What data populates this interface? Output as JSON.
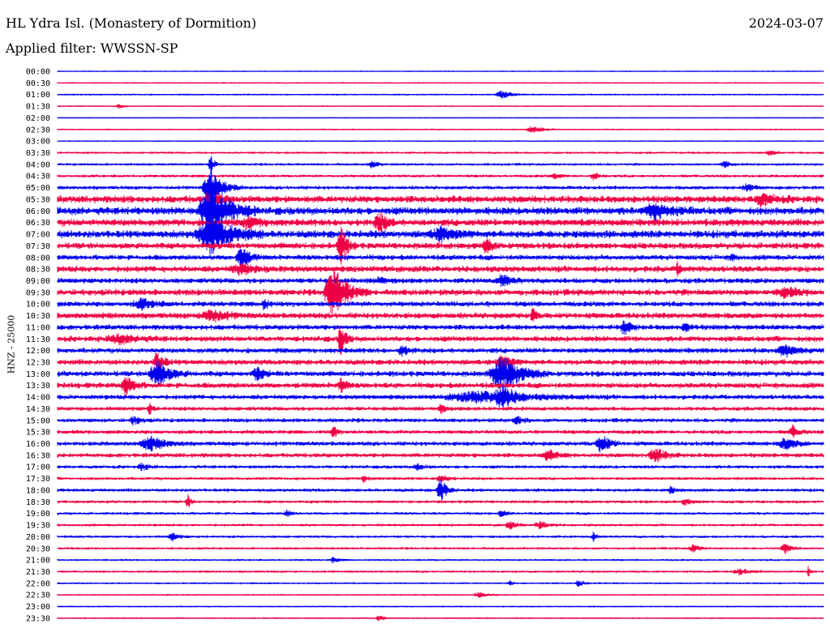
{
  "header": {
    "station": "HL Ydra Isl. (Monastery of Dormition)",
    "date": "2024-03-07",
    "filter": "Applied filter: WWSSN-SP"
  },
  "chart_data": {
    "type": "line",
    "title": "HL Ydra Isl. (Monastery of Dormition)",
    "ylabel": "HNZ - 25000",
    "colors": [
      "#0000ee",
      "#ee0044"
    ],
    "rows": [
      {
        "label": "00:00",
        "color": "#0000ee",
        "activity": 0.2,
        "events": []
      },
      {
        "label": "00:30",
        "color": "#ee0044",
        "activity": 0.4,
        "events": []
      },
      {
        "label": "01:00",
        "color": "#0000ee",
        "activity": 0.5,
        "events": [
          [
            0.58,
            5,
            30
          ]
        ]
      },
      {
        "label": "01:30",
        "color": "#ee0044",
        "activity": 0.3,
        "events": [
          [
            0.08,
            3,
            12
          ]
        ]
      },
      {
        "label": "02:00",
        "color": "#0000ee",
        "activity": 0.2,
        "events": []
      },
      {
        "label": "02:30",
        "color": "#ee0044",
        "activity": 0.4,
        "events": [
          [
            0.62,
            5,
            30
          ]
        ]
      },
      {
        "label": "03:00",
        "color": "#0000ee",
        "activity": 0.3,
        "events": []
      },
      {
        "label": "03:30",
        "color": "#ee0044",
        "activity": 0.8,
        "events": [
          [
            0.93,
            3,
            20
          ]
        ]
      },
      {
        "label": "04:00",
        "color": "#0000ee",
        "activity": 1.0,
        "events": [
          [
            0.41,
            4,
            20
          ],
          [
            0.87,
            4,
            20
          ],
          [
            0.2,
            12,
            12
          ]
        ]
      },
      {
        "label": "04:30",
        "color": "#ee0044",
        "activity": 1.2,
        "events": [
          [
            0.7,
            5,
            15
          ],
          [
            0.65,
            3,
            20
          ]
        ]
      },
      {
        "label": "05:00",
        "color": "#0000ee",
        "activity": 1.6,
        "events": [
          [
            0.2,
            20,
            40
          ],
          [
            0.9,
            5,
            25
          ]
        ]
      },
      {
        "label": "05:30",
        "color": "#ee0044",
        "activity": 3.5,
        "events": [
          [
            0.2,
            10,
            30
          ],
          [
            0.92,
            6,
            40
          ]
        ]
      },
      {
        "label": "06:00",
        "color": "#0000ee",
        "activity": 3.8,
        "events": [
          [
            0.2,
            32,
            60
          ],
          [
            0.78,
            9,
            50
          ]
        ]
      },
      {
        "label": "06:30",
        "color": "#ee0044",
        "activity": 3.5,
        "events": [
          [
            0.25,
            6,
            40
          ],
          [
            0.42,
            12,
            25
          ]
        ]
      },
      {
        "label": "07:00",
        "color": "#0000ee",
        "activity": 3.8,
        "events": [
          [
            0.2,
            22,
            70
          ],
          [
            0.5,
            7,
            50
          ]
        ]
      },
      {
        "label": "07:30",
        "color": "#ee0044",
        "activity": 3.0,
        "events": [
          [
            0.37,
            24,
            20
          ],
          [
            0.56,
            8,
            20
          ]
        ]
      },
      {
        "label": "08:00",
        "color": "#0000ee",
        "activity": 2.5,
        "events": [
          [
            0.24,
            14,
            25
          ],
          [
            0.88,
            5,
            10
          ]
        ]
      },
      {
        "label": "08:30",
        "color": "#ee0044",
        "activity": 3.0,
        "events": [
          [
            0.24,
            5,
            60
          ],
          [
            0.81,
            8,
            10
          ]
        ]
      },
      {
        "label": "09:00",
        "color": "#0000ee",
        "activity": 2.5,
        "events": [
          [
            0.58,
            8,
            25
          ],
          [
            0.42,
            4,
            20
          ]
        ]
      },
      {
        "label": "09:30",
        "color": "#ee0044",
        "activity": 3.0,
        "events": [
          [
            0.36,
            30,
            45
          ],
          [
            0.95,
            6,
            40
          ]
        ]
      },
      {
        "label": "10:00",
        "color": "#0000ee",
        "activity": 2.5,
        "events": [
          [
            0.11,
            6,
            40
          ],
          [
            0.27,
            10,
            10
          ]
        ]
      },
      {
        "label": "10:30",
        "color": "#ee0044",
        "activity": 2.8,
        "events": [
          [
            0.2,
            7,
            50
          ],
          [
            0.62,
            10,
            10
          ]
        ]
      },
      {
        "label": "11:00",
        "color": "#0000ee",
        "activity": 2.5,
        "events": [
          [
            0.74,
            8,
            20
          ],
          [
            0.82,
            6,
            15
          ]
        ]
      },
      {
        "label": "11:30",
        "color": "#ee0044",
        "activity": 2.6,
        "events": [
          [
            0.37,
            20,
            15
          ],
          [
            0.08,
            5,
            60
          ]
        ]
      },
      {
        "label": "12:00",
        "color": "#0000ee",
        "activity": 2.4,
        "events": [
          [
            0.45,
            6,
            20
          ],
          [
            0.95,
            6,
            40
          ]
        ]
      },
      {
        "label": "12:30",
        "color": "#ee0044",
        "activity": 2.6,
        "events": [
          [
            0.13,
            12,
            20
          ],
          [
            0.58,
            8,
            30
          ]
        ]
      },
      {
        "label": "13:00",
        "color": "#0000ee",
        "activity": 2.6,
        "events": [
          [
            0.13,
            16,
            40
          ],
          [
            0.58,
            22,
            60
          ],
          [
            0.26,
            9,
            20
          ]
        ]
      },
      {
        "label": "13:30",
        "color": "#ee0044",
        "activity": 2.6,
        "events": [
          [
            0.09,
            12,
            25
          ],
          [
            0.37,
            10,
            15
          ]
        ]
      },
      {
        "label": "14:00",
        "color": "#0000ee",
        "activity": 2.2,
        "events": [
          [
            0.55,
            6,
            160
          ],
          [
            0.58,
            14,
            30
          ]
        ]
      },
      {
        "label": "14:30",
        "color": "#ee0044",
        "activity": 1.8,
        "events": [
          [
            0.12,
            7,
            10
          ],
          [
            0.5,
            5,
            15
          ]
        ]
      },
      {
        "label": "15:00",
        "color": "#0000ee",
        "activity": 1.8,
        "events": [
          [
            0.6,
            5,
            20
          ],
          [
            0.1,
            5,
            20
          ]
        ]
      },
      {
        "label": "15:30",
        "color": "#ee0044",
        "activity": 1.8,
        "events": [
          [
            0.36,
            10,
            10
          ],
          [
            0.96,
            7,
            20
          ]
        ]
      },
      {
        "label": "16:00",
        "color": "#0000ee",
        "activity": 2.0,
        "events": [
          [
            0.12,
            8,
            50
          ],
          [
            0.71,
            13,
            25
          ],
          [
            0.95,
            8,
            30
          ]
        ]
      },
      {
        "label": "16:30",
        "color": "#ee0044",
        "activity": 2.0,
        "events": [
          [
            0.78,
            10,
            30
          ],
          [
            0.64,
            6,
            30
          ]
        ]
      },
      {
        "label": "17:00",
        "color": "#0000ee",
        "activity": 1.4,
        "events": [
          [
            0.11,
            4,
            20
          ],
          [
            0.47,
            4,
            20
          ]
        ]
      },
      {
        "label": "17:30",
        "color": "#ee0044",
        "activity": 1.2,
        "events": [
          [
            0.5,
            6,
            20
          ],
          [
            0.4,
            4,
            15
          ]
        ]
      },
      {
        "label": "18:00",
        "color": "#0000ee",
        "activity": 1.4,
        "events": [
          [
            0.5,
            14,
            20
          ],
          [
            0.8,
            4,
            15
          ]
        ]
      },
      {
        "label": "18:30",
        "color": "#ee0044",
        "activity": 1.2,
        "events": [
          [
            0.17,
            9,
            10
          ],
          [
            0.82,
            4,
            20
          ]
        ]
      },
      {
        "label": "19:00",
        "color": "#0000ee",
        "activity": 1.1,
        "events": [
          [
            0.58,
            5,
            15
          ],
          [
            0.3,
            4,
            15
          ]
        ]
      },
      {
        "label": "19:30",
        "color": "#ee0044",
        "activity": 1.0,
        "events": [
          [
            0.59,
            5,
            20
          ],
          [
            0.63,
            5,
            25
          ]
        ]
      },
      {
        "label": "20:00",
        "color": "#0000ee",
        "activity": 1.0,
        "events": [
          [
            0.15,
            5,
            20
          ],
          [
            0.7,
            6,
            10
          ]
        ]
      },
      {
        "label": "20:30",
        "color": "#ee0044",
        "activity": 0.9,
        "events": [
          [
            0.83,
            5,
            20
          ],
          [
            0.95,
            6,
            20
          ]
        ]
      },
      {
        "label": "21:00",
        "color": "#0000ee",
        "activity": 0.7,
        "events": [
          [
            0.36,
            4,
            15
          ]
        ]
      },
      {
        "label": "21:30",
        "color": "#ee0044",
        "activity": 0.8,
        "events": [
          [
            0.89,
            4,
            30
          ],
          [
            0.98,
            8,
            6
          ]
        ]
      },
      {
        "label": "22:00",
        "color": "#0000ee",
        "activity": 0.6,
        "events": [
          [
            0.68,
            5,
            15
          ],
          [
            0.59,
            3,
            10
          ]
        ]
      },
      {
        "label": "22:30",
        "color": "#ee0044",
        "activity": 0.5,
        "events": [
          [
            0.55,
            3,
            30
          ]
        ]
      },
      {
        "label": "23:00",
        "color": "#0000ee",
        "activity": 0.4,
        "events": []
      },
      {
        "label": "23:30",
        "color": "#ee0044",
        "activity": 0.4,
        "events": [
          [
            0.42,
            4,
            15
          ]
        ]
      }
    ]
  }
}
